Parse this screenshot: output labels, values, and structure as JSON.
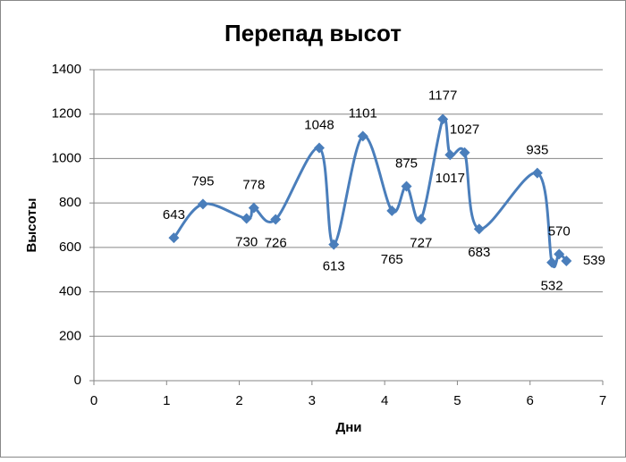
{
  "chart_data": {
    "type": "scatter",
    "title": "Перепад высот",
    "x_label": "Дни",
    "y_label": "Высоты",
    "series": [
      {
        "color": "#4a7ebb",
        "x": [
          1.1,
          1.5,
          2.1,
          2.2,
          2.5,
          3.1,
          3.3,
          3.7,
          4.1,
          4.3,
          4.5,
          4.8,
          4.9,
          5.1,
          5.3,
          6.1,
          6.3,
          6.4,
          6.5
        ],
        "values": [
          643,
          795,
          730,
          778,
          726,
          1048,
          613,
          1101,
          765,
          875,
          727,
          1177,
          1017,
          1027,
          683,
          935,
          532,
          570,
          539
        ]
      }
    ],
    "xlim": [
      0,
      7
    ],
    "xticks": [
      0,
      1,
      2,
      3,
      4,
      5,
      6,
      7
    ],
    "ylim": [
      0,
      1400
    ],
    "yticks": [
      0,
      200,
      400,
      600,
      800,
      1000,
      1200,
      1400
    ],
    "grid": true
  }
}
